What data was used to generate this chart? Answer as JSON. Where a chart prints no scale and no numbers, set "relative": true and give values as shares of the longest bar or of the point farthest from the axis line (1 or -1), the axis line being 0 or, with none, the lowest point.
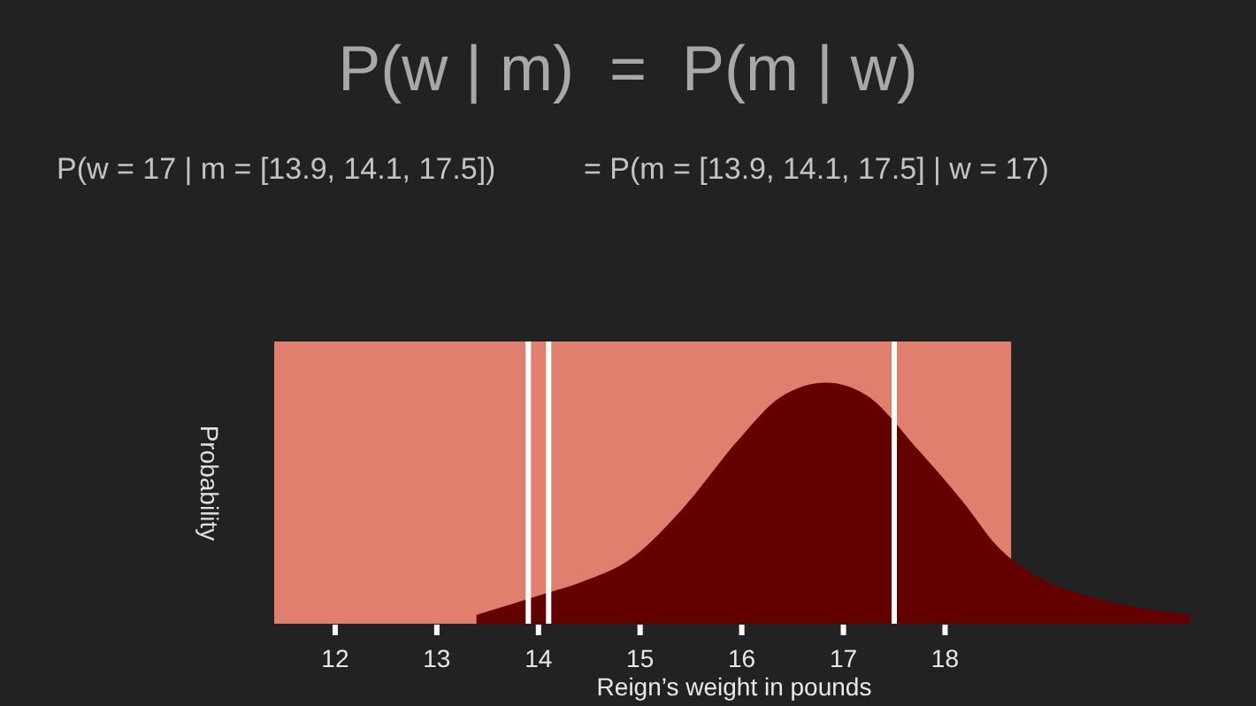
{
  "chart_data": {
    "type": "area",
    "title": "P(w | m)  =  P(m | w)",
    "subtitle": "P(w = 17 | m = [13.9, 14.1, 17.5])",
    "annotations": [
      "= P(m = [13.9, 14.1, 17.5] | w = 17)"
    ],
    "xlabel": "Reign’s weight in pounds",
    "ylabel": "Probability",
    "relative": true,
    "xlim": [
      11.4,
      20.45
    ],
    "xticks": [
      12,
      13,
      14,
      15,
      16,
      17,
      18
    ],
    "x": [
      13.39,
      14.0,
      14.45,
      14.9,
      15.42,
      15.94,
      16.38,
      16.83,
      17.22,
      17.74,
      18.19,
      18.5,
      18.9,
      19.48,
      20.41
    ],
    "series": [
      {
        "color": "#630000",
        "values": [
          0.04,
          0.12,
          0.18,
          0.27,
          0.48,
          0.75,
          0.94,
          1.0,
          0.95,
          0.72,
          0.5,
          0.33,
          0.2,
          0.11,
          0.04
        ]
      }
    ],
    "bands": [
      {
        "axis": "x",
        "from": 11.4,
        "to": 18.65,
        "color": "#e07f6d"
      }
    ],
    "ref_lines": [
      {
        "axis": "x",
        "value": 13.9,
        "color": "#ffffff"
      },
      {
        "axis": "x",
        "value": 14.1,
        "color": "#ffffff"
      },
      {
        "axis": "x",
        "value": 17.5,
        "color": "#ffffff"
      }
    ]
  }
}
